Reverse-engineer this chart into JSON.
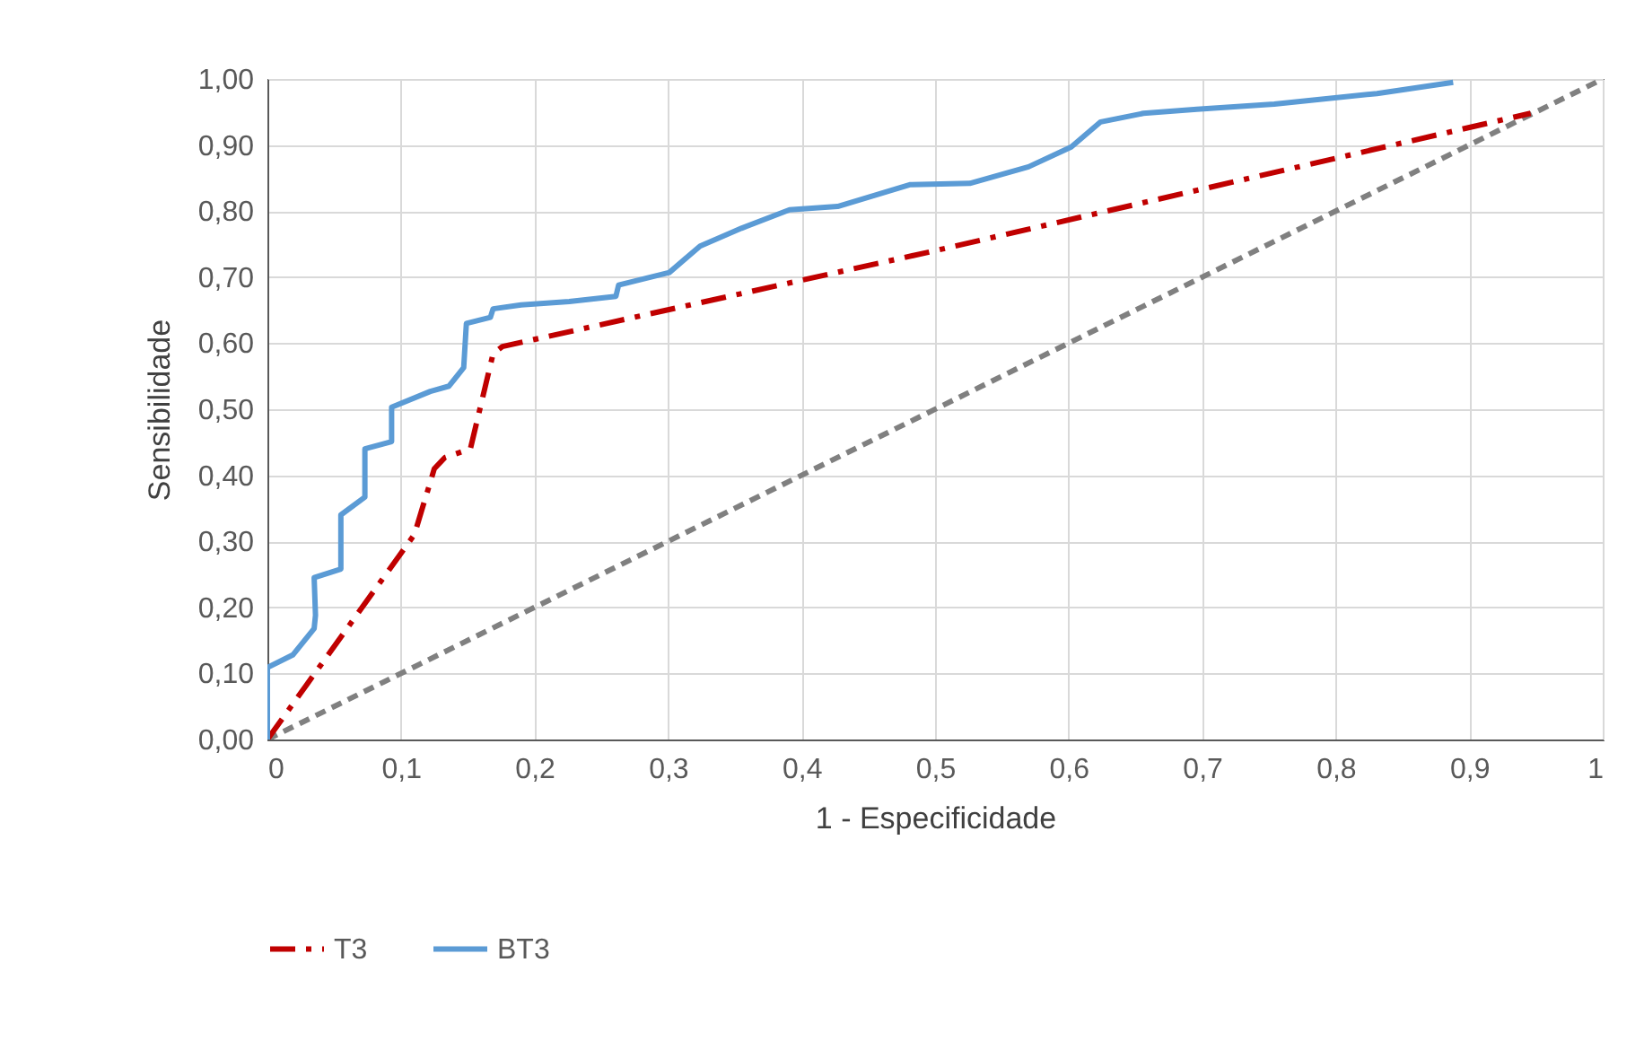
{
  "chart_data": {
    "type": "line",
    "xlabel": "1 - Especificidade",
    "ylabel": "Sensibilidade",
    "xlim": [
      0,
      1
    ],
    "ylim": [
      0,
      1
    ],
    "xticks": [
      0,
      {
        "value": 0.1,
        "label": "0,1"
      },
      {
        "value": 0.2,
        "label": "0,2"
      },
      {
        "value": 0.3,
        "label": "0,3"
      },
      {
        "value": 0.4,
        "label": "0,4"
      },
      {
        "value": 0.5,
        "label": "0,5"
      },
      {
        "value": 0.6,
        "label": "0,6"
      },
      {
        "value": 0.7,
        "label": "0,7"
      },
      {
        "value": 0.8,
        "label": "0,8"
      },
      {
        "value": 0.9,
        "label": "0,9"
      },
      1
    ],
    "yticks": [
      {
        "value": 0,
        "label": "0,00"
      },
      {
        "value": 0.1,
        "label": "0,10"
      },
      {
        "value": 0.2,
        "label": "0,20"
      },
      {
        "value": 0.3,
        "label": "0,30"
      },
      {
        "value": 0.4,
        "label": "0,40"
      },
      {
        "value": 0.5,
        "label": "0,50"
      },
      {
        "value": 0.6,
        "label": "0,60"
      },
      {
        "value": 0.7,
        "label": "0,70"
      },
      {
        "value": 0.8,
        "label": "0,80"
      },
      {
        "value": 0.9,
        "label": "0,90"
      },
      {
        "value": 1,
        "label": "1,00"
      }
    ],
    "grid": true,
    "legend": "bottom",
    "marker": "none",
    "series": [
      {
        "color": "#808080",
        "line_style": "dashed",
        "x": [
          0,
          1
        ],
        "values": [
          0,
          1
        ]
      },
      {
        "name": "T3",
        "color": "#c00000",
        "line_style": "dashdot",
        "x": [
          0,
          0.11,
          0.125,
          0.133,
          0.152,
          0.169,
          0.176,
          0.5,
          0.946
        ],
        "values": [
          0,
          0.31,
          0.41,
          0.427,
          0.44,
          0.584,
          0.595,
          0.74,
          0.948
        ]
      },
      {
        "name": "BT3",
        "color": "#5b9bd5",
        "line_style": "solid",
        "x": [
          0,
          0,
          0.019,
          0.035,
          0.036,
          0.035,
          0.055,
          0.055,
          0.073,
          0.073,
          0.093,
          0.093,
          0.122,
          0.136,
          0.147,
          0.149,
          0.167,
          0.169,
          0.19,
          0.226,
          0.261,
          0.263,
          0.301,
          0.324,
          0.355,
          0.391,
          0.427,
          0.481,
          0.526,
          0.57,
          0.602,
          0.624,
          0.656,
          0.696,
          0.754,
          0.831,
          0.888
        ],
        "values": [
          0,
          0.109,
          0.128,
          0.168,
          0.188,
          0.245,
          0.258,
          0.34,
          0.367,
          0.44,
          0.451,
          0.503,
          0.527,
          0.535,
          0.563,
          0.63,
          0.639,
          0.652,
          0.658,
          0.663,
          0.671,
          0.688,
          0.707,
          0.747,
          0.774,
          0.802,
          0.807,
          0.84,
          0.842,
          0.867,
          0.897,
          0.935,
          0.948,
          0.954,
          0.962,
          0.978,
          0.995
        ]
      }
    ]
  }
}
